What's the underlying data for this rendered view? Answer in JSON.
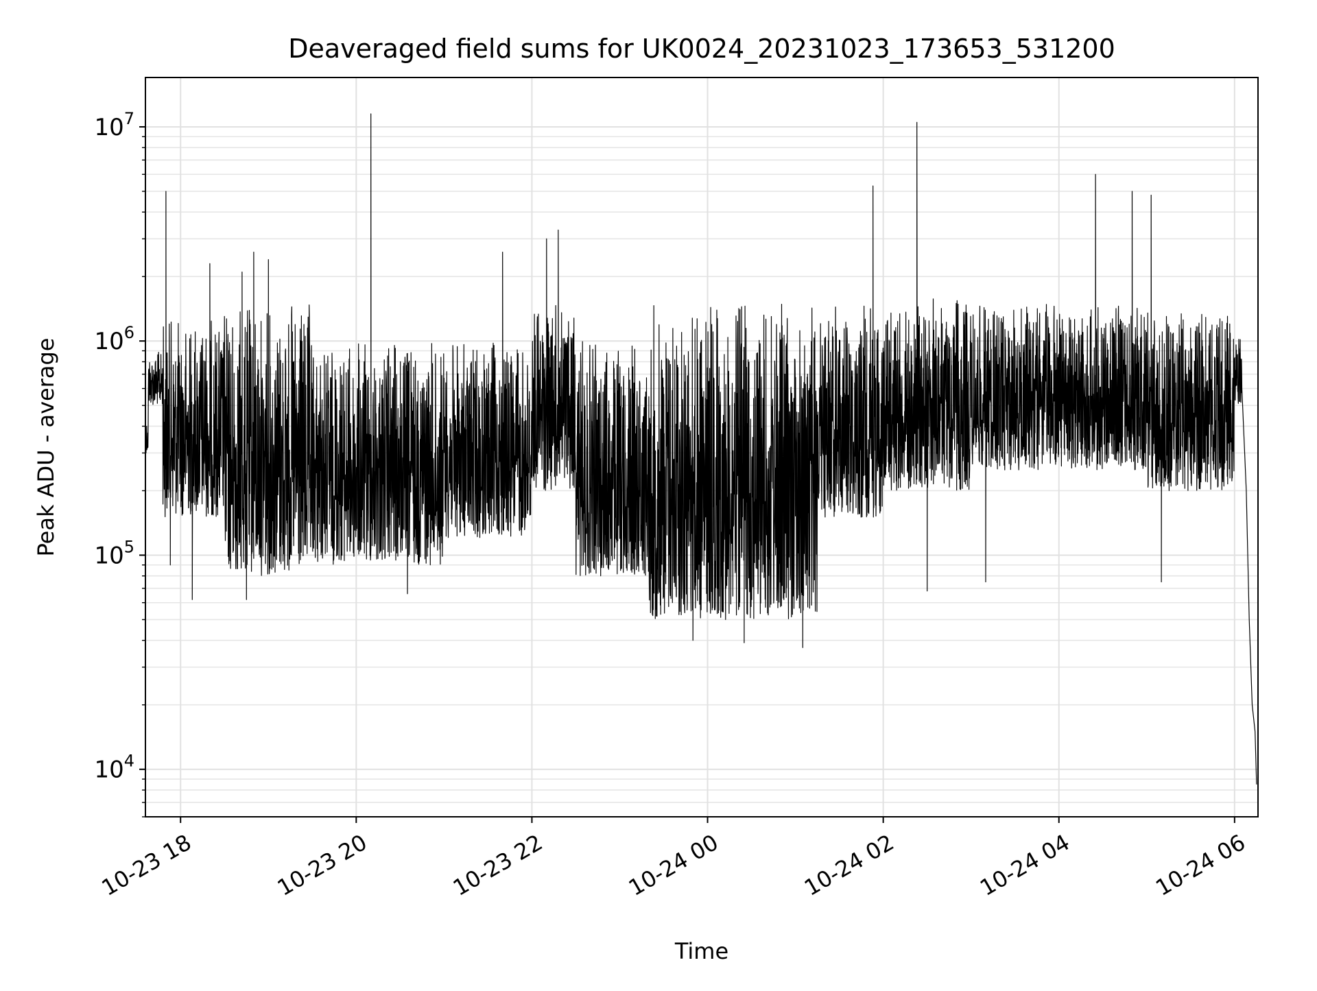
{
  "chart_data": {
    "type": "line",
    "title": "Deaveraged field sums for UK0024_20231023_173653_531200",
    "xlabel": "Time",
    "ylabel": "Peak ADU - average",
    "yscale": "log",
    "ylim": [
      6000,
      17000000
    ],
    "xlim": [
      "2023-10-23 17:36",
      "2023-10-24 06:16"
    ],
    "grid": "major and minor, light gray",
    "legend": "none",
    "line_color": "#000000",
    "x_ticks": [
      {
        "t": "2023-10-23 18:00",
        "label": "10-23 18"
      },
      {
        "t": "2023-10-23 20:00",
        "label": "10-23 20"
      },
      {
        "t": "2023-10-23 22:00",
        "label": "10-23 22"
      },
      {
        "t": "2023-10-24 00:00",
        "label": "10-24 00"
      },
      {
        "t": "2023-10-24 02:00",
        "label": "10-24 02"
      },
      {
        "t": "2023-10-24 04:00",
        "label": "10-24 04"
      },
      {
        "t": "2023-10-24 06:00",
        "label": "10-24 06"
      }
    ],
    "y_ticks": [
      {
        "value": 10000,
        "base": "10",
        "exp": "4"
      },
      {
        "value": 100000,
        "base": "10",
        "exp": "5"
      },
      {
        "value": 1000000,
        "base": "10",
        "exp": "6"
      },
      {
        "value": 10000000,
        "base": "10",
        "exp": "7"
      }
    ],
    "series": [
      {
        "segments": [
          {
            "start": "2023-10-23 17:36",
            "end": "2023-10-23 17:38",
            "lo": 300000,
            "hi": 450000
          },
          {
            "start": "2023-10-23 17:38",
            "end": "2023-10-23 17:48",
            "lo": 500000,
            "hi": 900000
          },
          {
            "start": "2023-10-23 17:48",
            "end": "2023-10-23 18:30",
            "lo": 150000,
            "hi": 1300000
          },
          {
            "start": "2023-10-23 18:30",
            "end": "2023-10-23 19:30",
            "lo": 80000,
            "hi": 1500000
          },
          {
            "start": "2023-10-23 19:30",
            "end": "2023-10-23 21:00",
            "lo": 90000,
            "hi": 1000000
          },
          {
            "start": "2023-10-23 21:00",
            "end": "2023-10-23 22:00",
            "lo": 120000,
            "hi": 1000000
          },
          {
            "start": "2023-10-23 22:00",
            "end": "2023-10-23 22:30",
            "lo": 200000,
            "hi": 1500000
          },
          {
            "start": "2023-10-23 22:30",
            "end": "2023-10-23 23:20",
            "lo": 80000,
            "hi": 1000000
          },
          {
            "start": "2023-10-23 23:20",
            "end": "2023-10-24 01:15",
            "lo": 50000,
            "hi": 1550000
          },
          {
            "start": "2023-10-24 01:15",
            "end": "2023-10-24 02:00",
            "lo": 150000,
            "hi": 1500000
          },
          {
            "start": "2023-10-24 02:00",
            "end": "2023-10-24 03:00",
            "lo": 200000,
            "hi": 1600000
          },
          {
            "start": "2023-10-24 03:00",
            "end": "2023-10-24 04:00",
            "lo": 250000,
            "hi": 1500000
          },
          {
            "start": "2023-10-24 04:00",
            "end": "2023-10-24 05:00",
            "lo": 250000,
            "hi": 1500000
          },
          {
            "start": "2023-10-24 05:00",
            "end": "2023-10-24 06:00",
            "lo": 200000,
            "hi": 1400000
          },
          {
            "start": "2023-10-24 06:00",
            "end": "2023-10-24 06:05",
            "lo": 500000,
            "hi": 1100000
          }
        ],
        "tail": [
          {
            "t": "2023-10-24 06:05",
            "v": 600000
          },
          {
            "t": "2023-10-24 06:08",
            "v": 200000
          },
          {
            "t": "2023-10-24 06:10",
            "v": 50000
          },
          {
            "t": "2023-10-24 06:12",
            "v": 20000
          },
          {
            "t": "2023-10-24 06:14",
            "v": 15000
          },
          {
            "t": "2023-10-24 06:15",
            "v": 8500
          }
        ],
        "spikes": [
          {
            "t": "2023-10-23 17:50",
            "v": 5000000
          },
          {
            "t": "2023-10-23 18:20",
            "v": 2300000
          },
          {
            "t": "2023-10-23 18:42",
            "v": 2100000
          },
          {
            "t": "2023-10-23 18:50",
            "v": 2600000
          },
          {
            "t": "2023-10-23 19:00",
            "v": 2400000
          },
          {
            "t": "2023-10-23 20:10",
            "v": 11500000
          },
          {
            "t": "2023-10-23 21:40",
            "v": 2600000
          },
          {
            "t": "2023-10-23 22:10",
            "v": 3000000
          },
          {
            "t": "2023-10-23 22:18",
            "v": 3300000
          },
          {
            "t": "2023-10-24 01:53",
            "v": 5300000
          },
          {
            "t": "2023-10-24 02:23",
            "v": 10500000
          },
          {
            "t": "2023-10-24 04:25",
            "v": 6000000
          },
          {
            "t": "2023-10-24 04:50",
            "v": 5000000
          },
          {
            "t": "2023-10-24 05:03",
            "v": 4800000
          }
        ],
        "dips": [
          {
            "t": "2023-10-23 17:53",
            "v": 90000
          },
          {
            "t": "2023-10-23 18:08",
            "v": 62000
          },
          {
            "t": "2023-10-23 18:45",
            "v": 62000
          },
          {
            "t": "2023-10-23 20:35",
            "v": 66000
          },
          {
            "t": "2023-10-23 23:25",
            "v": 52000
          },
          {
            "t": "2023-10-23 23:50",
            "v": 40000
          },
          {
            "t": "2023-10-24 00:25",
            "v": 39000
          },
          {
            "t": "2023-10-24 01:05",
            "v": 37000
          },
          {
            "t": "2023-10-24 02:30",
            "v": 68000
          },
          {
            "t": "2023-10-24 03:10",
            "v": 75000
          },
          {
            "t": "2023-10-24 05:10",
            "v": 75000
          }
        ]
      }
    ]
  }
}
